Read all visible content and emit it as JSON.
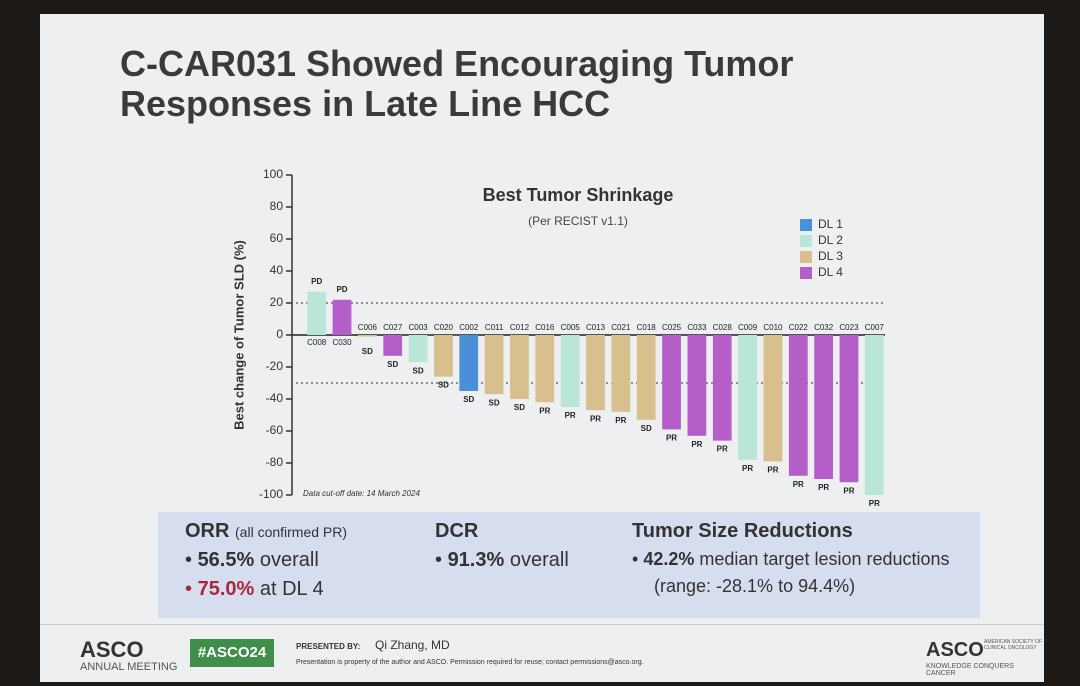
{
  "title": "C-CAR031 Showed Encouraging Tumor Responses in Late Line HCC",
  "chart_data": {
    "type": "bar",
    "title": "Best Tumor Shrinkage",
    "subtitle": "(Per RECIST v1.1)",
    "y_label": "Best change of Tumor SLD (%)",
    "note": "Data cut-off date: 14 March 2024",
    "categories": [
      "C008",
      "C030",
      "C006",
      "C027",
      "C003",
      "C020",
      "C002",
      "C011",
      "C012",
      "C016",
      "C005",
      "C013",
      "C021",
      "C018",
      "C025",
      "C033",
      "C028",
      "C009",
      "C010",
      "C022",
      "C032",
      "C023",
      "C007"
    ],
    "series": [
      {
        "name": "DL 1",
        "color": "#4a90d9",
        "values": [
          null,
          null,
          null,
          null,
          null,
          null,
          -35,
          null,
          null,
          null,
          null,
          null,
          null,
          null,
          null,
          null,
          null,
          null,
          null,
          null,
          null,
          null,
          null
        ]
      },
      {
        "name": "DL 2",
        "color": "#b9e6d9",
        "values": [
          27,
          null,
          null,
          null,
          -17,
          null,
          null,
          null,
          null,
          null,
          -45,
          null,
          null,
          null,
          null,
          null,
          null,
          -78,
          null,
          null,
          null,
          null,
          -100
        ]
      },
      {
        "name": "DL 3",
        "color": "#d8bf8e",
        "values": [
          null,
          null,
          -1,
          null,
          null,
          -26,
          null,
          -37,
          -40,
          -42,
          null,
          -47,
          -48,
          -53,
          null,
          null,
          null,
          null,
          -79,
          null,
          null,
          null,
          null
        ]
      },
      {
        "name": "DL 4",
        "color": "#b35ec9",
        "values": [
          null,
          22,
          null,
          -13,
          null,
          null,
          null,
          null,
          null,
          null,
          null,
          null,
          null,
          null,
          -59,
          -63,
          -66,
          null,
          null,
          -88,
          -90,
          -92,
          null
        ]
      }
    ],
    "responses": [
      "PD",
      "PD",
      "SD",
      "SD",
      "SD",
      "SD",
      "SD",
      "SD",
      "SD",
      "PR",
      "PR",
      "PR",
      "PR",
      "SD",
      "PR",
      "PR",
      "PR",
      "PR",
      "PR",
      "PR",
      "PR",
      "PR",
      "PR"
    ],
    "reference_lines": [
      20,
      -30
    ],
    "ylim": [
      -100,
      100
    ],
    "yticks": [
      -100,
      -80,
      -60,
      -40,
      -20,
      0,
      20,
      40,
      60,
      80,
      100
    ],
    "legend_position": "upper right"
  },
  "summary": {
    "orr": {
      "heading": "ORR",
      "note": "(all confirmed PR)",
      "items": [
        {
          "highlight": "56.5%",
          "text": "overall"
        },
        {
          "highlight": "75.0%",
          "text": "at DL 4"
        }
      ]
    },
    "dcr": {
      "heading": "DCR",
      "items": [
        {
          "highlight": "91.3%",
          "text": "overall"
        }
      ]
    },
    "tumor": {
      "heading": "Tumor Size Reductions",
      "items": [
        {
          "highlight": "42.2%",
          "text": "median target lesion reductions"
        }
      ],
      "range": "(range: -28.1% to 94.4%)"
    }
  },
  "footer": {
    "meeting": "ASCO",
    "meeting_sub": "ANNUAL MEETING",
    "hashtag": "#ASCO24",
    "presented_by": "PRESENTED BY:",
    "presenter": "Qi Zhang, MD",
    "disclaimer": "Presentation is property of the author and ASCO. Permission required for reuse; contact permissions@asco.org.",
    "logo": "ASCO",
    "logo_sub": "AMERICAN SOCIETY OF CLINICAL ONCOLOGY",
    "tagline": "KNOWLEDGE CONQUERS CANCER"
  }
}
